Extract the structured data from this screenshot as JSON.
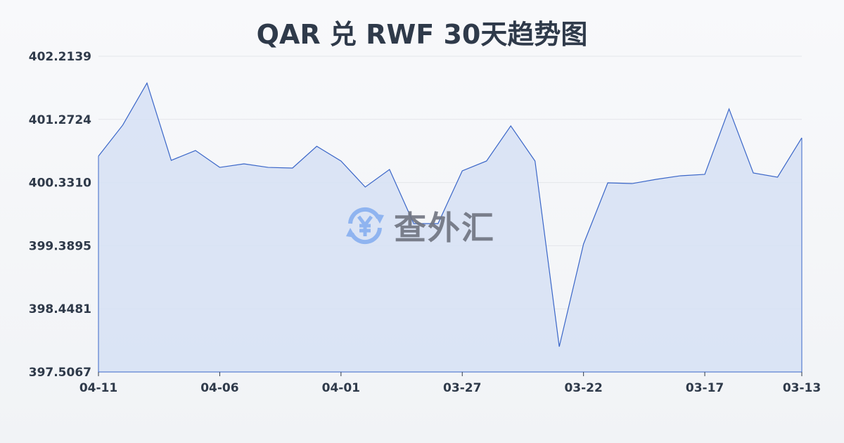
{
  "chart_data": {
    "type": "area",
    "title": "QAR 兑 RWF 30天趋势图",
    "x": [
      "04-11",
      "04-10",
      "04-09",
      "04-08",
      "04-07",
      "04-06",
      "04-05",
      "04-04",
      "04-03",
      "04-02",
      "04-01",
      "03-31",
      "03-30",
      "03-29",
      "03-28",
      "03-27",
      "03-26",
      "03-25",
      "03-24",
      "03-23",
      "03-22",
      "03-21",
      "03-20",
      "03-19",
      "03-18",
      "03-17",
      "03-16",
      "03-15",
      "03-14",
      "03-13"
    ],
    "values": [
      400.725,
      401.187,
      401.815,
      400.662,
      400.809,
      400.557,
      400.61,
      400.557,
      400.547,
      400.872,
      400.652,
      400.264,
      400.526,
      399.719,
      399.719,
      400.505,
      400.652,
      401.176,
      400.652,
      397.884,
      399.415,
      400.327,
      400.316,
      400.379,
      400.432,
      400.453,
      401.428,
      400.474,
      400.411,
      400.998
    ],
    "x_tick_labels": [
      "04-11",
      "04-06",
      "04-01",
      "03-27",
      "03-22",
      "03-17",
      "03-13"
    ],
    "y_tick_labels": [
      "402.2139",
      "401.2724",
      "400.3310",
      "399.3895",
      "398.4481",
      "397.5067"
    ],
    "ylim": [
      397.5067,
      402.2139
    ],
    "grid": true,
    "line_color": "#3a66c8",
    "fill_color": "#d6e1f5"
  },
  "watermark": {
    "text": "查外汇",
    "icon": "yen-exchange-icon",
    "icon_color": "#8fb4f0"
  }
}
